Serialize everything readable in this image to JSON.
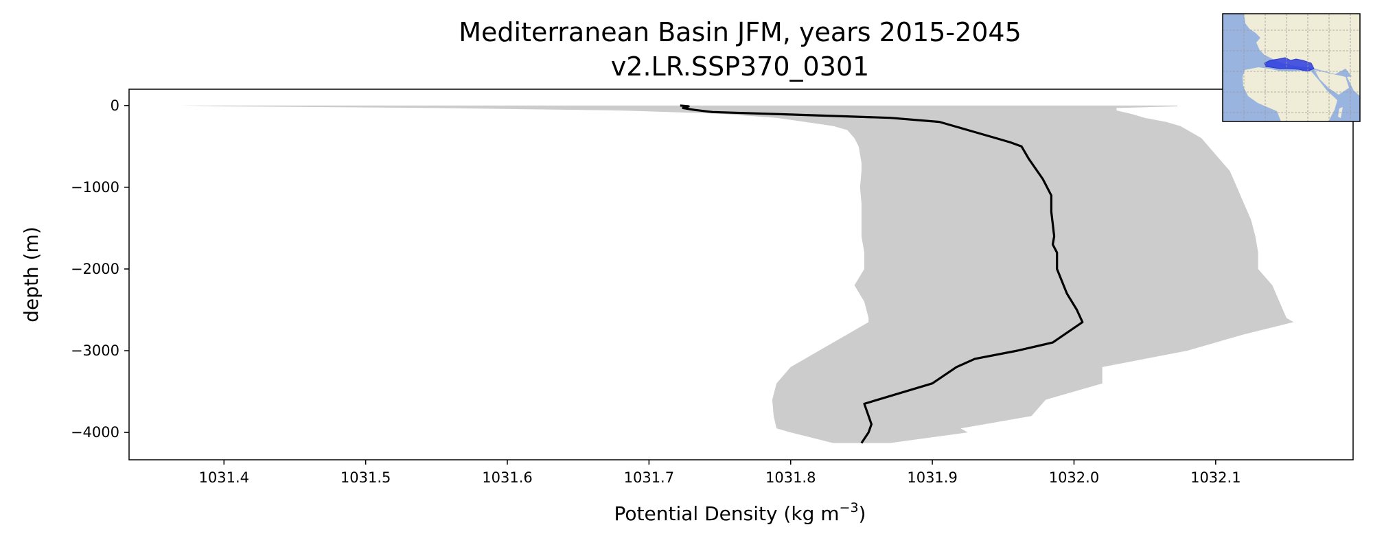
{
  "chart_data": {
    "type": "line",
    "title": "Mediterranean Basin JFM, years 2015-2045",
    "subtitle": "v2.LR.SSP370_0301",
    "xlabel": "Potential Density (kg m",
    "xlabel_superscript": "−3",
    "xlabel_suffix": ")",
    "ylabel": "depth (m)",
    "xlim": [
      1031.333,
      1032.197
    ],
    "ylim": [
      -4335,
      200
    ],
    "xticks": [
      1031.4,
      1031.5,
      1031.6,
      1031.7,
      1031.8,
      1031.9,
      1032.0,
      1032.1
    ],
    "xtick_labels": [
      "1031.4",
      "1031.5",
      "1031.6",
      "1031.7",
      "1031.8",
      "1031.9",
      "1032.0",
      "1032.1"
    ],
    "yticks": [
      0,
      -1000,
      -2000,
      -3000,
      -4000
    ],
    "ytick_labels": [
      "0",
      "−1000",
      "−2000",
      "−3000",
      "−4000"
    ],
    "grid": false,
    "series": [
      {
        "style": "mean-line",
        "color": "#000000",
        "depth": [
          0,
          -10,
          -30,
          -55,
          -80,
          -110,
          -150,
          -200,
          -300,
          -400,
          -450,
          -500,
          -650,
          -900,
          -1100,
          -1300,
          -1600,
          -1700,
          -1800,
          -2000,
          -2300,
          -2500,
          -2650,
          -2900,
          -3000,
          -3100,
          -3200,
          -3400,
          -3650,
          -3900,
          -4000,
          -4130
        ],
        "density": [
          1031.722,
          1031.728,
          1031.724,
          1031.733,
          1031.745,
          1031.8,
          1031.87,
          1031.905,
          1031.925,
          1031.945,
          1031.955,
          1031.963,
          1031.968,
          1031.978,
          1031.984,
          1031.984,
          1031.986,
          1031.985,
          1031.988,
          1031.988,
          1031.995,
          1032.002,
          1032.006,
          1031.985,
          1031.96,
          1031.93,
          1031.917,
          1031.9,
          1031.852,
          1031.857,
          1031.855,
          1031.85
        ]
      },
      {
        "style": "range-band",
        "color": "#cccccc",
        "depth": [
          0,
          -10,
          -30,
          -60,
          -100,
          -150,
          -200,
          -250,
          -300,
          -400,
          -500,
          -600,
          -700,
          -800,
          -1000,
          -1200,
          -1400,
          -1600,
          -1800,
          -2000,
          -2200,
          -2400,
          -2600,
          -2650,
          -2800,
          -3000,
          -3200,
          -3400,
          -3600,
          -3800,
          -3950,
          -4000,
          -4130
        ],
        "lower": [
          1031.37,
          1031.4,
          1031.55,
          1031.68,
          1031.75,
          1031.79,
          1031.81,
          1031.83,
          1031.84,
          1031.845,
          1031.848,
          1031.849,
          1031.85,
          1031.85,
          1031.849,
          1031.85,
          1031.85,
          1031.85,
          1031.852,
          1031.852,
          1031.845,
          1031.852,
          1031.855,
          1031.855,
          1031.84,
          1031.82,
          1031.8,
          1031.79,
          1031.787,
          1031.788,
          1031.79,
          1031.8,
          1031.83
        ],
        "upper": [
          1032.073,
          1032.073,
          1032.03,
          1032.03,
          1032.04,
          1032.05,
          1032.065,
          1032.075,
          1032.08,
          1032.09,
          1032.095,
          1032.1,
          1032.105,
          1032.11,
          1032.115,
          1032.12,
          1032.125,
          1032.128,
          1032.13,
          1032.13,
          1032.14,
          1032.145,
          1032.15,
          1032.155,
          1032.12,
          1032.08,
          1032.02,
          1032.02,
          1031.98,
          1031.97,
          1031.92,
          1031.925,
          1031.87
        ]
      }
    ]
  },
  "inset_map": {
    "ocean_color": "#9ab4e0",
    "land_color": "#efecd8",
    "region_color": "#2f3de0",
    "grid_color": "#9a9a9a"
  }
}
